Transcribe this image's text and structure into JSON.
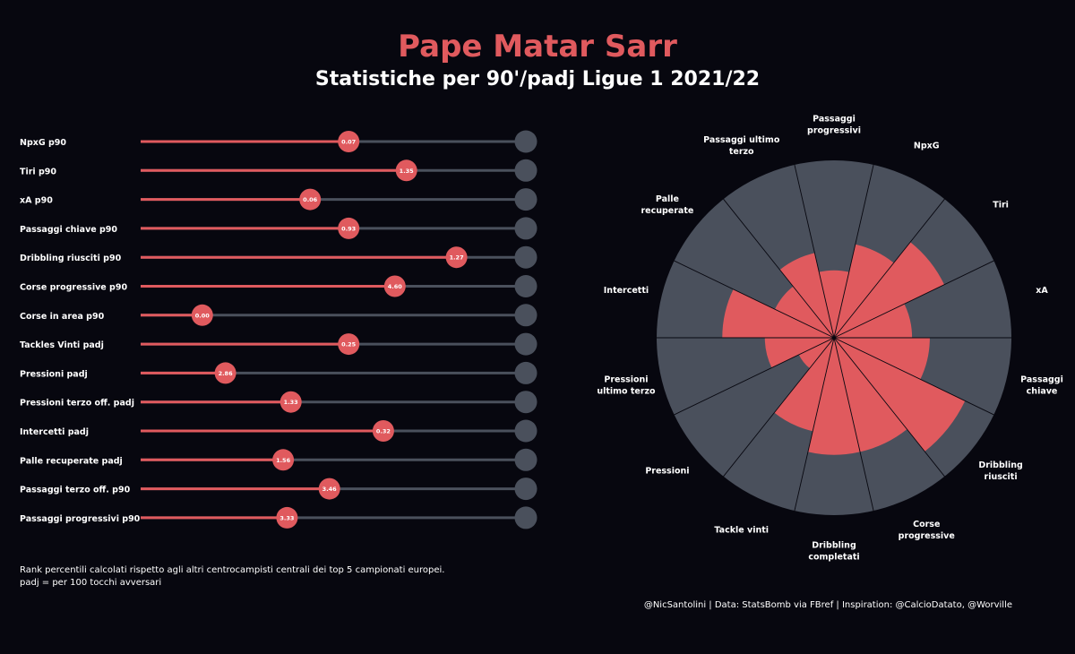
{
  "header": {
    "title": "Pape Matar Sarr",
    "subtitle": "Statistiche per 90'/padj Ligue 1 2021/22"
  },
  "footer": {
    "note_line1": "Rank percentili calcolati rispetto agli altri centrocampisti centrali dei top 5 campionati europei.",
    "note_line2": "padj = per 100 tocchi avversari",
    "credits": "@NicSantolini | Data: StatsBomb via FBref | Inspiration: @CalcioDatato, @Worville"
  },
  "colors": {
    "background": "#07070f",
    "accent": "#e05a5e",
    "track": "#4a505c",
    "text": "#ffffff"
  },
  "chart_data": [
    {
      "type": "bar",
      "orientation": "horizontal",
      "description_value_unit": "percentile (0-100)",
      "xlim": [
        0,
        100
      ],
      "rows": [
        {
          "label": "NpxG p90",
          "value_label": "0.07",
          "percentile": 54
        },
        {
          "label": "Tiri p90",
          "value_label": "1.35",
          "percentile": 69
        },
        {
          "label": "xA p90",
          "value_label": "0.06",
          "percentile": 44
        },
        {
          "label": "Passaggi chiave p90",
          "value_label": "0.93",
          "percentile": 54
        },
        {
          "label": "Dribbling riusciti p90",
          "value_label": "1.27",
          "percentile": 82
        },
        {
          "label": "Corse progressive p90",
          "value_label": "4.60",
          "percentile": 66
        },
        {
          "label": "Corse in area p90",
          "value_label": "0.00",
          "percentile": 16
        },
        {
          "label": "Tackles Vinti padj",
          "value_label": "0.25",
          "percentile": 54
        },
        {
          "label": "Pressioni padj",
          "value_label": "2.86",
          "percentile": 22
        },
        {
          "label": "Pressioni terzo off. padj",
          "value_label": "1.33",
          "percentile": 39
        },
        {
          "label": "Intercetti padj",
          "value_label": "0.32",
          "percentile": 63
        },
        {
          "label": "Palle recuperate padj",
          "value_label": "1.56",
          "percentile": 37
        },
        {
          "label": "Passaggi terzo off. p90",
          "value_label": "3.46",
          "percentile": 49
        },
        {
          "label": "Passaggi progressivi p90",
          "value_label": "3.33",
          "percentile": 38
        }
      ]
    },
    {
      "type": "polar_bar",
      "rlim": [
        0,
        100
      ],
      "categories": [
        "Passaggi\nprogressivi",
        "NpxG",
        "Tiri",
        "xA",
        "Passaggi\nchiave",
        "Dribbling\nriusciti",
        "Corse\nprogressive",
        "Dribbling\ncompletati",
        "Tackle vinti",
        "Pressioni",
        "Pressioni\nultimo terzo",
        "Intercetti",
        "Palle\nrecuperate",
        "Passaggi ultimo\nterzo"
      ],
      "values": [
        38,
        54,
        69,
        44,
        54,
        82,
        66,
        66,
        54,
        22,
        39,
        63,
        37,
        49
      ]
    }
  ]
}
